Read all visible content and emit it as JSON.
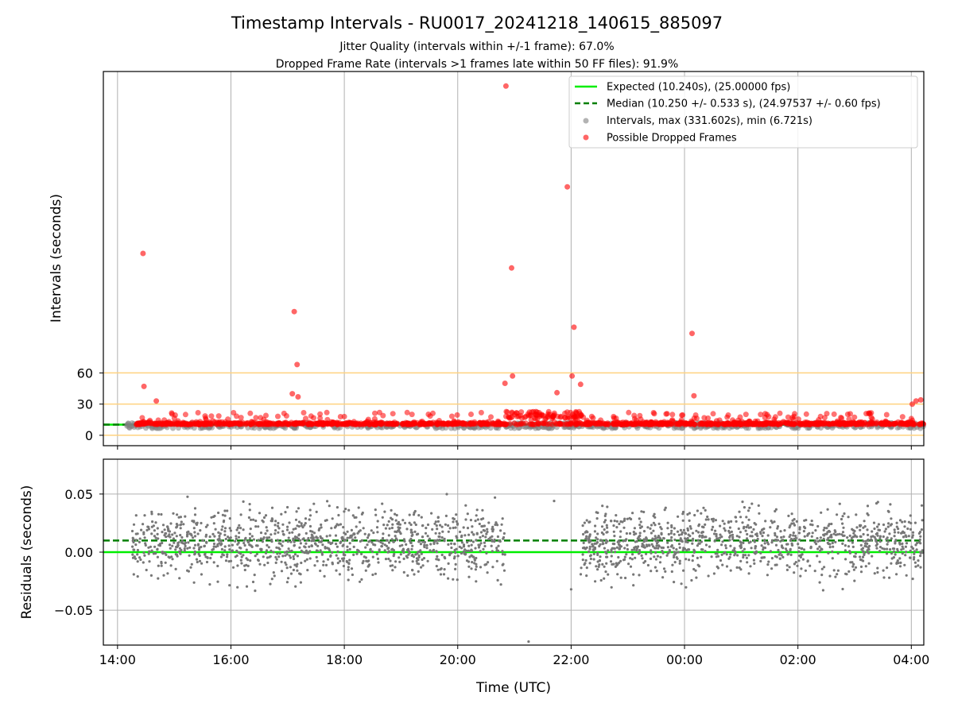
{
  "chart_data": [
    {
      "type": "scatter",
      "title": "Timestamp Intervals - RU0017_20241218_140615_885097",
      "subtitle_lines": [
        "Jitter Quality (intervals within +/-1 frame): 67.0%",
        "Dropped Frame Rate (intervals >1 frames late within 50 FF files): 91.9%"
      ],
      "xlabel": "",
      "ylabel": "Intervals (seconds)",
      "x_axis": {
        "start": "14:00",
        "end": "04:00",
        "unit": "hours since 14:00",
        "xlim": [
          -0.25,
          14.22
        ]
      },
      "ylim": [
        -10,
        350
      ],
      "y_scale": "linear (ticks only at 0, 30, 60)",
      "y_ticks": [
        "0",
        "30",
        "60"
      ],
      "reference_lines": [
        0,
        30,
        60
      ],
      "reference_line_color": "#ffd27f",
      "grid": "vertical lines at each x tick",
      "legend_position": "upper-right",
      "legend": [
        {
          "label": "Expected (10.240s), (25.00000 fps)",
          "style": "solid",
          "color": "#00ee00"
        },
        {
          "label": "Median (10.250 +/- 0.533 s), (24.97537 +/- 0.60 fps)",
          "style": "dashed",
          "color": "#007f00"
        },
        {
          "label": "Intervals, max (331.602s), min (6.721s)",
          "style": "marker",
          "color": "#808080"
        },
        {
          "label": "Possible Dropped Frames",
          "style": "marker",
          "color": "#ff0000"
        }
      ],
      "series": [
        {
          "name": "Possible Dropped Frames",
          "color": "#ff0000",
          "notable_points": [
            {
              "x": "14:27",
              "y": 175
            },
            {
              "x": "14:28",
              "y": 47
            },
            {
              "x": "14:41",
              "y": 33
            },
            {
              "x": "17:07",
              "y": 119
            },
            {
              "x": "17:10",
              "y": 68
            },
            {
              "x": "17:05",
              "y": 40
            },
            {
              "x": "17:11",
              "y": 37
            },
            {
              "x": "20:51",
              "y": 336
            },
            {
              "x": "20:57",
              "y": 161
            },
            {
              "x": "20:50",
              "y": 50
            },
            {
              "x": "20:58",
              "y": 57
            },
            {
              "x": "21:56",
              "y": 239
            },
            {
              "x": "22:03",
              "y": 104
            },
            {
              "x": "22:01",
              "y": 57
            },
            {
              "x": "22:10",
              "y": 49
            },
            {
              "x": "21:45",
              "y": 41
            },
            {
              "x": "00:08",
              "y": 98
            },
            {
              "x": "00:10",
              "y": 38
            },
            {
              "x": "04:05",
              "y": 33
            },
            {
              "x": "04:10",
              "y": 34
            },
            {
              "x": "04:01",
              "y": 30
            }
          ],
          "baseline_cluster": {
            "x_range": [
              "14:20",
              "04:13"
            ],
            "y_range": [
              7,
              22
            ]
          }
        },
        {
          "name": "Intervals",
          "color": "#808080",
          "baseline_cluster": {
            "x_range": [
              "14:10",
              "04:13"
            ],
            "y_range": [
              6.7,
              12
            ]
          }
        }
      ],
      "expected_value": 10.24,
      "median_value": 10.25
    },
    {
      "type": "scatter",
      "title": "",
      "xlabel": "Time (UTC)",
      "ylabel": "Residuals (seconds)",
      "x_ticks": [
        "14:00",
        "16:00",
        "18:00",
        "20:00",
        "22:00",
        "00:00",
        "02:00",
        "04:00"
      ],
      "ylim": [
        -0.08,
        0.08
      ],
      "y_ticks": [
        "−0.05",
        "0.00",
        "0.05"
      ],
      "grid": "both",
      "reference_lines": [
        {
          "label": "Expected",
          "y": 0.0,
          "style": "solid",
          "color": "#00ee00"
        },
        {
          "label": "Median",
          "y": 0.01,
          "style": "dashed",
          "color": "#007f00"
        }
      ],
      "series": [
        {
          "name": "Residuals",
          "color": "#777777",
          "segments": [
            {
              "x_range": [
                "14:15",
                "20:50"
              ],
              "center": 0.008,
              "spread": 0.02
            },
            {
              "x_range": [
                "22:10",
                "04:13"
              ],
              "center": 0.008,
              "spread": 0.02
            }
          ],
          "isolated_points": [
            {
              "x": "21:15",
              "y": -0.077
            },
            {
              "x": "21:42",
              "y": 0.044
            },
            {
              "x": "22:00",
              "y": -0.032
            }
          ]
        }
      ]
    }
  ]
}
